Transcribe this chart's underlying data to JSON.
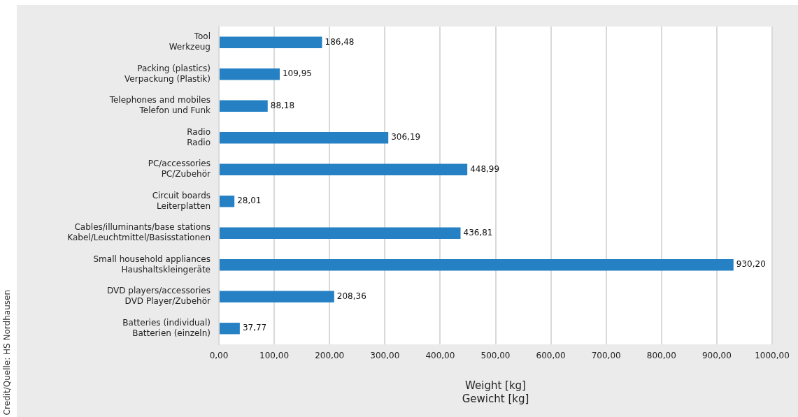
{
  "chart_data": {
    "type": "bar",
    "orientation": "horizontal",
    "categories": [
      "Tool\nWerkzeug",
      "Packing (plastics)\nVerpackung (Plastik)",
      "Telephones and mobiles\nTelefon und Funk",
      "Radio\nRadio",
      "PC/accessories\nPC/Zubehör",
      "Circuit boards\nLeiterplatten",
      "Cables/illuminants/base stations\nKabel/Leuchtmittel/Basisstationen",
      "Small household appliances\nHaushaltskleingeräte",
      "DVD players/accessories\nDVD Player/Zubehör",
      "Batteries (individual)\nBatterien (einzeln)"
    ],
    "values": [
      186.48,
      109.95,
      88.18,
      306.19,
      448.99,
      28.01,
      436.81,
      930.2,
      208.36,
      37.77
    ],
    "value_labels": [
      "186,48",
      "109,95",
      "88,18",
      "306,19",
      "448,99",
      "28,01",
      "436,81",
      "930,20",
      "208,36",
      "37,77"
    ],
    "color": "#2581c4",
    "xlim": [
      0,
      1000
    ],
    "xticks": [
      {
        "value": 0,
        "label": "0,00"
      },
      {
        "value": 100,
        "label": "100,00"
      },
      {
        "value": 200,
        "label": "200,00"
      },
      {
        "value": 300,
        "label": "300,00"
      },
      {
        "value": 400,
        "label": "400,00"
      },
      {
        "value": 500,
        "label": "500,00"
      },
      {
        "value": 600,
        "label": "600,00"
      },
      {
        "value": 700,
        "label": "700,00"
      },
      {
        "value": 800,
        "label": "800,00"
      },
      {
        "value": 900,
        "label": "900,00"
      },
      {
        "value": 1000,
        "label": "1000,00"
      }
    ],
    "xlabel": "Weight [kg]\nGewicht [kg]",
    "grid": "x",
    "annotations": [
      "Credit/Quelle: HS Nordhausen"
    ]
  }
}
